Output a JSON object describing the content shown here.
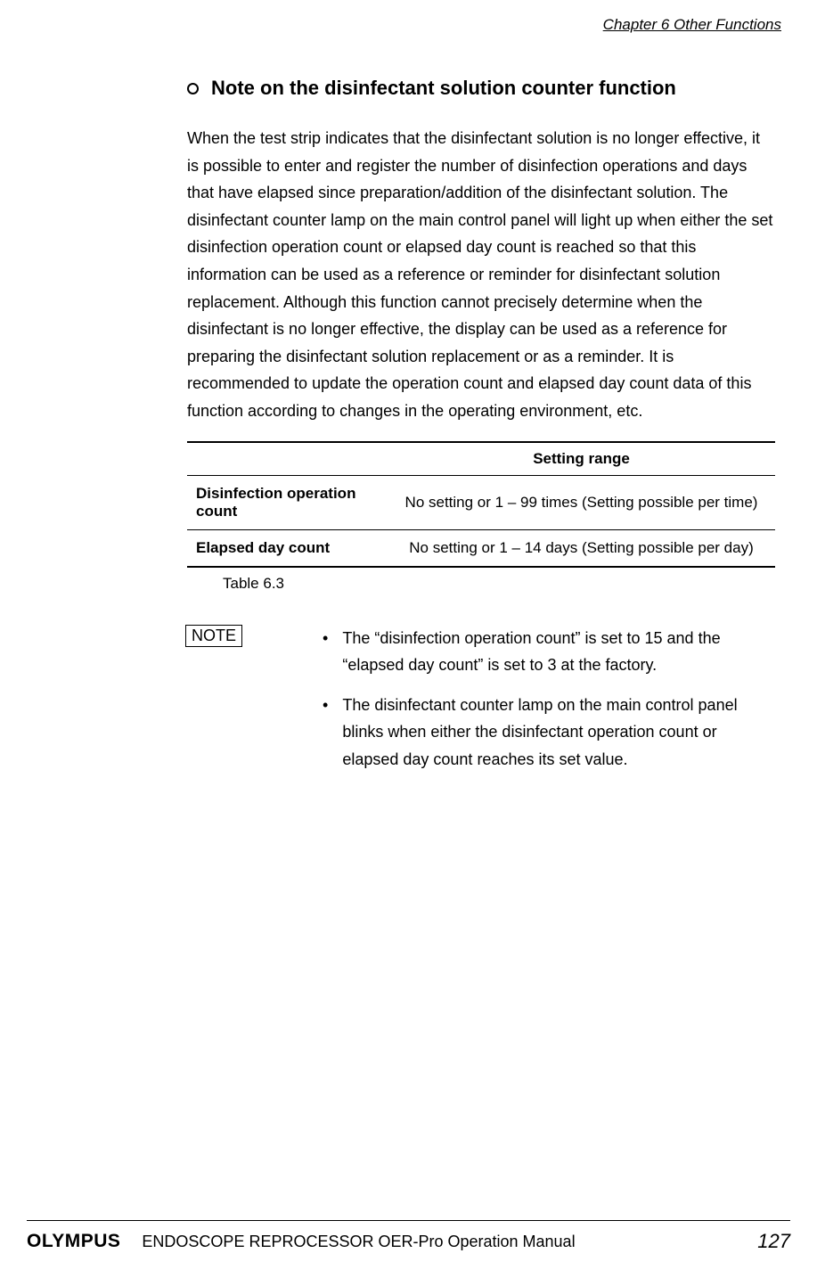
{
  "header": {
    "chapter": "Chapter 6  Other Functions"
  },
  "section": {
    "heading": "Note on the disinfectant solution counter function",
    "body": "When the test strip indicates that the disinfectant solution is no longer effective, it is possible to enter and register the number of disinfection operations and days that have elapsed since preparation/addition of the disinfectant solution. The disinfectant counter lamp on the main control panel will light up when either the set disinfection operation count or elapsed day count is reached so that this information can be used as a reference or reminder for disinfectant solution replacement. Although this function cannot precisely determine when the disinfectant is no longer effective, the display can be used as a reference for preparing the disinfectant solution replacement or as a reminder. It is recommended to update the operation count and elapsed day count data of this function according to changes in the operating environment, etc."
  },
  "table": {
    "header_range": "Setting range",
    "rows": [
      {
        "label": "Disinfection operation count",
        "range": "No setting or 1 – 99 times (Setting possible per time)"
      },
      {
        "label": "Elapsed day count",
        "range": "No setting or 1 – 14 days (Setting possible per day)"
      }
    ],
    "caption": "Table 6.3"
  },
  "note": {
    "label": "NOTE",
    "items": [
      "The “disinfection operation count” is set to 15 and the “elapsed day count” is set to 3 at the factory.",
      "The disinfectant counter lamp on the main control panel blinks when either the disinfectant operation count or elapsed day count reaches its set value."
    ]
  },
  "footer": {
    "logo": "OLYMPUS",
    "title": "ENDOSCOPE REPROCESSOR OER-Pro Operation Manual",
    "page": "127"
  }
}
